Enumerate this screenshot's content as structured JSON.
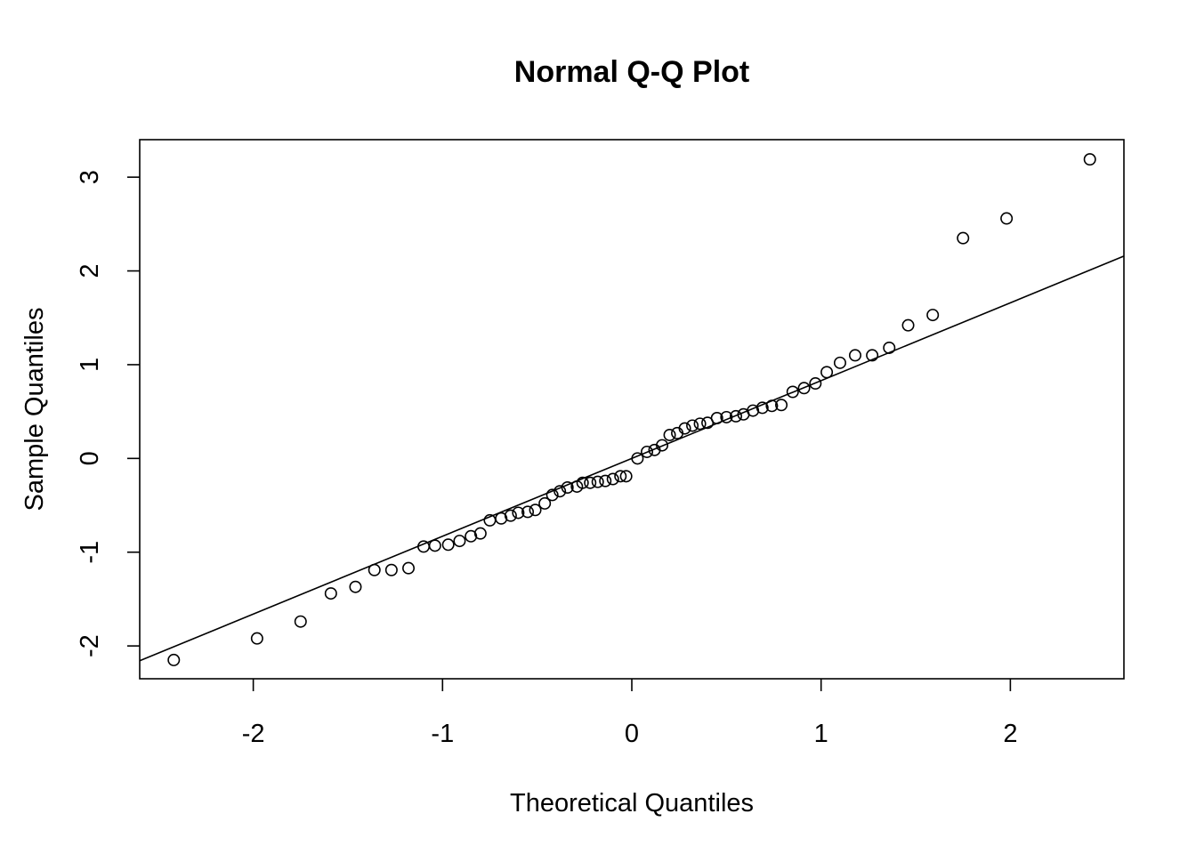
{
  "chart_data": {
    "type": "scatter",
    "title": "Normal Q-Q Plot",
    "xlabel": "Theoretical Quantiles",
    "ylabel": "Sample Quantiles",
    "xlim": [
      -2.6,
      2.6
    ],
    "ylim": [
      -2.35,
      3.4
    ],
    "xticks": [
      -2,
      -1,
      0,
      1,
      2
    ],
    "xtick_labels": [
      "-2",
      "-1",
      "0",
      "1",
      "2"
    ],
    "yticks": [
      -2,
      -1,
      0,
      1,
      2,
      3
    ],
    "ytick_labels": [
      "-2",
      "-1",
      "0",
      "1",
      "2",
      "3"
    ],
    "grid": false,
    "reference_line": {
      "intercept": 0.0,
      "slope": 0.83
    },
    "points": {
      "x": [
        -2.42,
        -1.98,
        -1.75,
        -1.59,
        -1.46,
        -1.36,
        -1.27,
        -1.18,
        -1.1,
        -1.04,
        -0.97,
        -0.91,
        -0.85,
        -0.8,
        -0.75,
        -0.69,
        -0.64,
        -0.6,
        -0.55,
        -0.51,
        -0.46,
        -0.42,
        -0.38,
        -0.34,
        -0.29,
        -0.26,
        -0.22,
        -0.18,
        -0.14,
        -0.1,
        -0.06,
        -0.03,
        0.03,
        0.08,
        0.12,
        0.16,
        0.2,
        0.24,
        0.28,
        0.32,
        0.36,
        0.4,
        0.45,
        0.5,
        0.55,
        0.59,
        0.64,
        0.69,
        0.74,
        0.79,
        0.85,
        0.91,
        0.97,
        1.03,
        1.1,
        1.18,
        1.27,
        1.36,
        1.46,
        1.59,
        1.75,
        1.98,
        2.42
      ],
      "y": [
        -2.15,
        -1.92,
        -1.74,
        -1.44,
        -1.37,
        -1.19,
        -1.19,
        -1.17,
        -0.94,
        -0.93,
        -0.92,
        -0.88,
        -0.83,
        -0.8,
        -0.66,
        -0.64,
        -0.61,
        -0.58,
        -0.57,
        -0.55,
        -0.48,
        -0.39,
        -0.35,
        -0.31,
        -0.3,
        -0.26,
        -0.26,
        -0.25,
        -0.24,
        -0.22,
        -0.19,
        -0.19,
        0.0,
        0.07,
        0.09,
        0.14,
        0.25,
        0.27,
        0.32,
        0.35,
        0.37,
        0.38,
        0.43,
        0.44,
        0.45,
        0.47,
        0.51,
        0.54,
        0.56,
        0.57,
        0.71,
        0.75,
        0.8,
        0.92,
        1.02,
        1.1,
        1.1,
        1.18,
        1.42,
        1.53,
        2.35,
        2.56,
        3.19
      ]
    }
  }
}
